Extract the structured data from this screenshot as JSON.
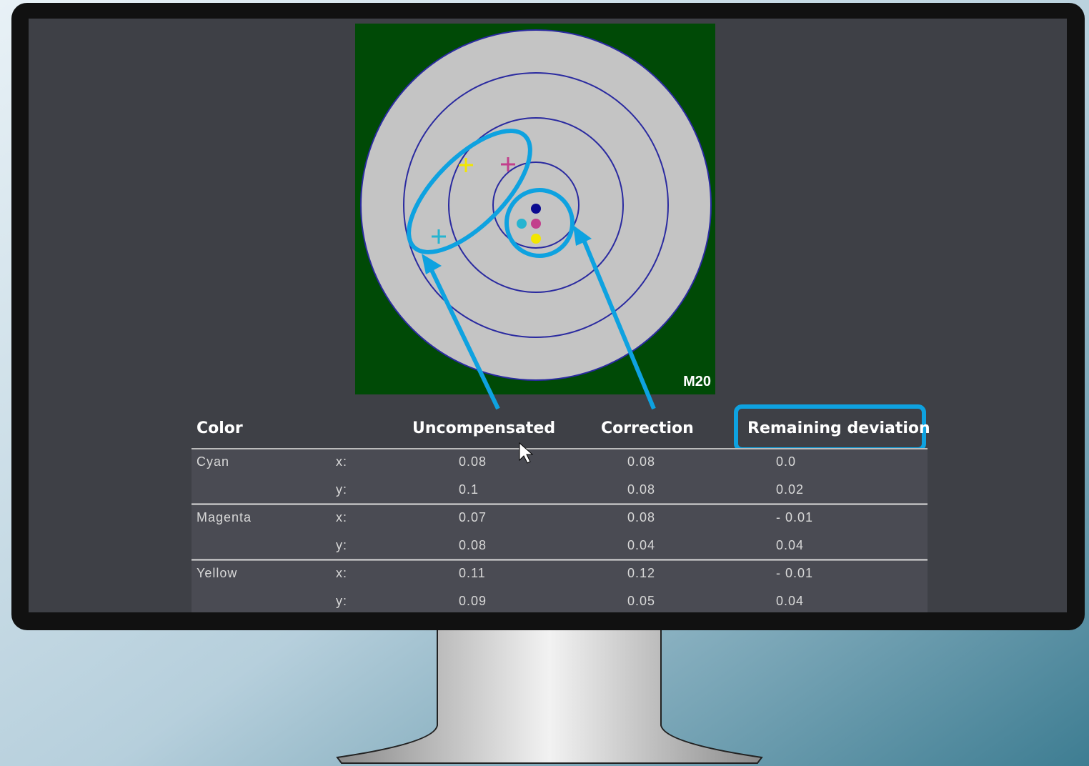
{
  "target": {
    "label": "M20"
  },
  "table": {
    "header": [
      "Color",
      "Uncompensated",
      "Correction",
      "Remaining deviation"
    ],
    "groups": [
      {
        "name": "Cyan",
        "rows": [
          {
            "axis": "x:",
            "values": [
              "0.08",
              "0.08",
              "0.0"
            ]
          },
          {
            "axis": "y:",
            "values": [
              "0.1",
              "0.08",
              "0.02"
            ]
          }
        ]
      },
      {
        "name": "Magenta",
        "rows": [
          {
            "axis": "x:",
            "values": [
              "0.07",
              "0.08",
              "- 0.01"
            ]
          },
          {
            "axis": "y:",
            "values": [
              "0.08",
              "0.04",
              "0.04"
            ]
          }
        ]
      },
      {
        "name": "Yellow",
        "rows": [
          {
            "axis": "x:",
            "values": [
              "0.11",
              "0.12",
              "- 0.01"
            ]
          },
          {
            "axis": "y:",
            "values": [
              "0.09",
              "0.05",
              "0.04"
            ]
          }
        ]
      }
    ]
  }
}
